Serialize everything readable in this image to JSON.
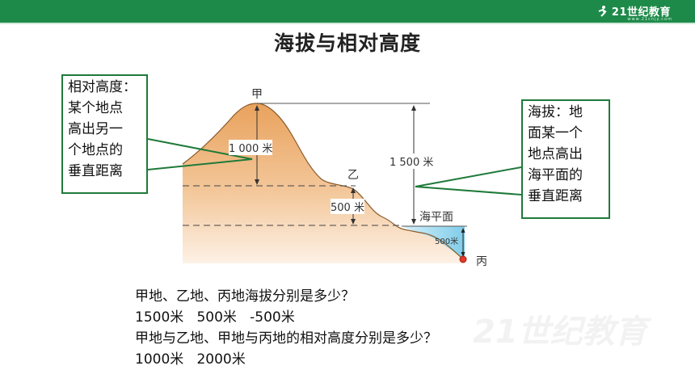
{
  "header": {
    "brand": "21世纪教育",
    "url": "www.21cnjy.com"
  },
  "title": "海拔与相对高度",
  "diagram": {
    "point_jia": "甲",
    "point_yi": "乙",
    "point_bing": "丙",
    "label_1000": "1 000 米",
    "label_500": "500 米",
    "label_1500": "1 500 米",
    "label_sea": "海平面",
    "label_500_small": "500米"
  },
  "callouts": {
    "relative_height": "相对高度：\n某个地点\n高出另一\n个地点的\n垂直距离",
    "altitude": "海拔：地\n面某一个\n地点高出\n海平面的\n垂直距离"
  },
  "qa": {
    "q1": "甲地、乙地、丙地海拔分别是多少？",
    "a1": "1500米   500米   -500米",
    "q2": "甲地与乙地、甲地与丙地的相对高度分别是多少？",
    "a2": "1000米   2000米"
  },
  "watermark": "21世纪教育",
  "colors": {
    "header_green": "#1e8a4a",
    "callout_border": "#1f7a3a",
    "mountain": "#e8a466",
    "water": "#8fd3ef"
  }
}
